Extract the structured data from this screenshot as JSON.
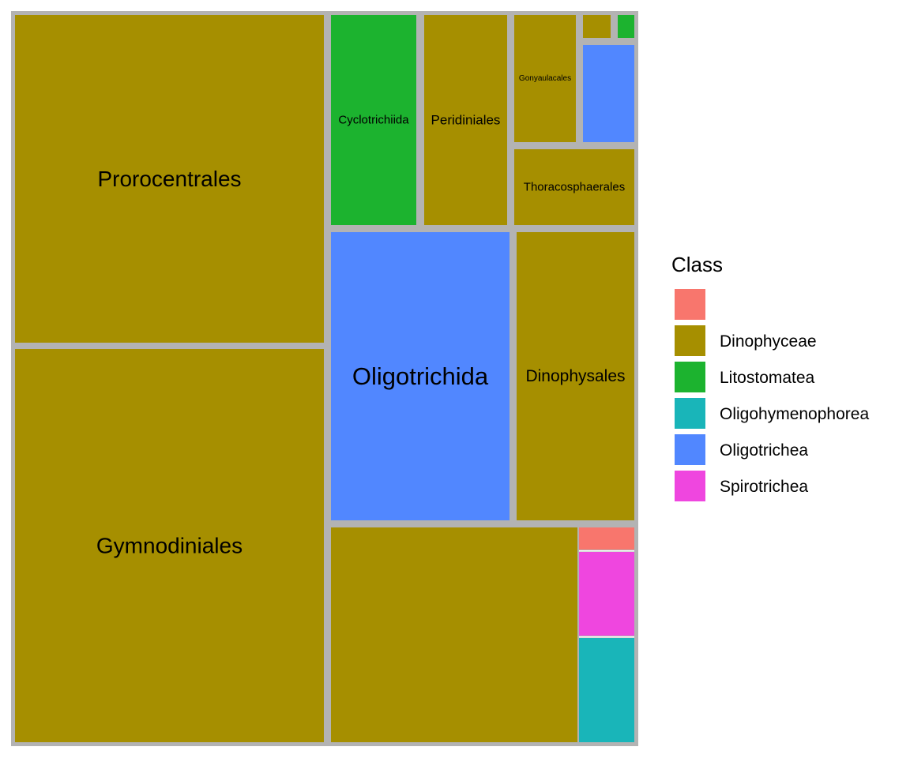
{
  "chart_data": {
    "type": "treemap",
    "legend_title": "Class",
    "legend_position": "right",
    "border_color": "#b3b3b3",
    "classes": [
      {
        "name": "",
        "color": "#f8766d"
      },
      {
        "name": "Dinophyceae",
        "color": "#a68f00"
      },
      {
        "name": "Litostomatea",
        "color": "#1cb32f"
      },
      {
        "name": "Oligohymenophorea",
        "color": "#19b5b9"
      },
      {
        "name": "Oligotrichea",
        "color": "#5187ff"
      },
      {
        "name": "Spirotrichea",
        "color": "#ef46df"
      }
    ],
    "tiles": [
      {
        "label": "Prorocentrales",
        "class": "Dinophyceae",
        "value": 29.2
      },
      {
        "label": "Gymnodiniales",
        "class": "Dinophyceae",
        "value": 32.1
      },
      {
        "label": "Cyclotrichiida",
        "class": "Litostomatea",
        "value": 3.5
      },
      {
        "label": "Peridiniales",
        "class": "Dinophyceae",
        "value": 3.3
      },
      {
        "label": "Gonyaulacales",
        "class": "Dinophyceae",
        "value": 1.5
      },
      {
        "label": "",
        "class": "Dinophyceae",
        "value": 0.1
      },
      {
        "label": "",
        "class": "Litostomatea",
        "value": 0.1
      },
      {
        "label": "",
        "class": "Oligotrichea",
        "value": 1.2
      },
      {
        "label": "Thoracosphaerales",
        "class": "Dinophyceae",
        "value": 1.6
      },
      {
        "label": "Oligotrichida",
        "class": "Oligotrichea",
        "value": 13.3
      },
      {
        "label": "Dinophysales",
        "class": "Dinophyceae",
        "value": 8.9
      },
      {
        "label": "",
        "class": "Dinophyceae",
        "value": 13.2
      },
      {
        "label": "",
        "class": "",
        "value": 0.4
      },
      {
        "label": "",
        "class": "Spirotrichea",
        "value": 1.1
      },
      {
        "label": "",
        "class": "Oligohymenophorea",
        "value": 1.1
      }
    ]
  }
}
